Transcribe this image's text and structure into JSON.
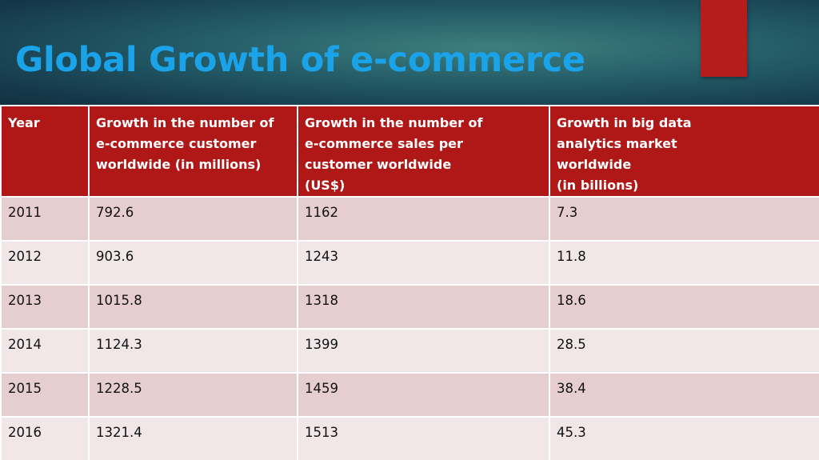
{
  "slide": {
    "title": "Global Growth of e-commerce"
  },
  "colors": {
    "title": "#1aa3e8",
    "header_band": "#235a66",
    "accent": "#b71c1c",
    "table_header": "#b01717",
    "row_odd": "#e6cdcf",
    "row_even": "#f1e7e8"
  },
  "table": {
    "headers": [
      {
        "lines": [
          "Year"
        ]
      },
      {
        "lines": [
          "Growth in the number of",
          "e-commerce customer",
          "worldwide (in millions)"
        ]
      },
      {
        "lines": [
          "Growth in the number of",
          "e-commerce sales per",
          "customer worldwide",
          "(US$)"
        ]
      },
      {
        "lines": [
          "Growth in big data",
          "analytics market",
          "worldwide",
          "(in billions)"
        ]
      }
    ],
    "rows": [
      [
        "2011",
        "792.6",
        "1162",
        "7.3"
      ],
      [
        "2012",
        "903.6",
        "1243",
        "11.8"
      ],
      [
        "2013",
        "1015.8",
        "1318",
        "18.6"
      ],
      [
        "2014",
        "1124.3",
        "1399",
        "28.5"
      ],
      [
        "2015",
        "1228.5",
        "1459",
        "38.4"
      ],
      [
        "2016",
        "1321.4",
        "1513",
        "45.3"
      ]
    ]
  }
}
